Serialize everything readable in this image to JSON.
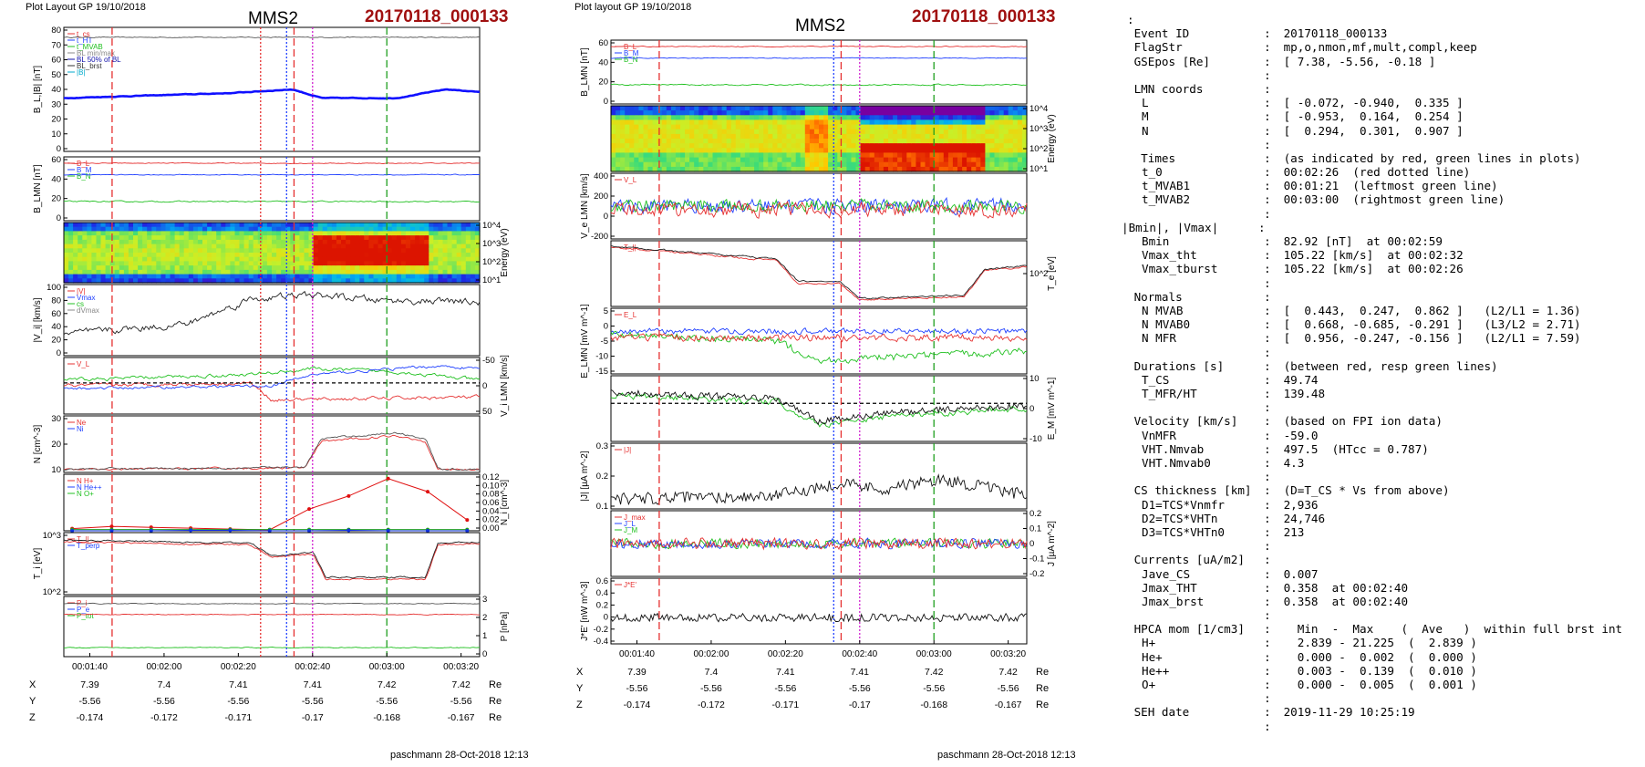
{
  "left_plot": {
    "layout_label": "Plot Layout GP 19/10/2018",
    "title": "MMS2",
    "event": "20170118_000133",
    "footer": "paschmann 28-Oct-2018 12:13",
    "time_ticks": [
      "00:01:40",
      "00:02:00",
      "00:02:20",
      "00:02:40",
      "00:03:00",
      "00:03:20"
    ],
    "coords": {
      "X": {
        "label": "X",
        "values": [
          "7.39",
          "7.4",
          "7.41",
          "7.41",
          "7.42",
          "7.42"
        ],
        "unit": "Re"
      },
      "Y": {
        "label": "Y",
        "values": [
          "-5.56",
          "-5.56",
          "-5.56",
          "-5.56",
          "-5.56",
          "-5.56"
        ],
        "unit": "Re"
      },
      "Z": {
        "label": "Z",
        "values": [
          "-0.174",
          "-0.172",
          "-0.171",
          "-0.17",
          "-0.168",
          "-0.167"
        ],
        "unit": "Re"
      }
    },
    "panels": [
      {
        "id": "bl",
        "ylabel": "B_L,|B| [nT]",
        "ticks": [
          "0",
          "10",
          "20",
          "30",
          "40",
          "50",
          "60",
          "70",
          "80"
        ],
        "legend": [
          "t_cs",
          "t_HT",
          "t_MVAB",
          "BL min/max",
          "BL 50% of BL",
          "BL_brst",
          "|B|"
        ]
      },
      {
        "id": "blmn",
        "ylabel": "B_LMN [nT]",
        "ticks": [
          "0",
          "20",
          "40",
          "60"
        ],
        "legend": [
          "B_L",
          "B_M",
          "B_N"
        ]
      },
      {
        "id": "espec",
        "ylabel": "Energy (eV)",
        "ticks": [
          "10^1",
          "10^2",
          "10^3",
          "10^4"
        ]
      },
      {
        "id": "vi",
        "ylabel": "|V_i| [km/s]",
        "ticks": [
          "0",
          "20",
          "40",
          "60",
          "80",
          "100"
        ],
        "legend": [
          "|V|",
          "Vmax",
          "cs",
          "dVmax"
        ]
      },
      {
        "id": "vilmn",
        "ylabel": "V_i LMN [km/s]",
        "ticks": [
          "50",
          "0",
          "-50"
        ],
        "legend": [
          "V_L"
        ]
      },
      {
        "id": "n",
        "ylabel": "N [cm^-3]",
        "ticks": [
          "10",
          "20",
          "30"
        ],
        "legend": [
          "Ne",
          "Ni"
        ]
      },
      {
        "id": "hpca",
        "ylabel": "N_i [cm^-3]",
        "ticks": [
          "0.00",
          "0.02",
          "0.04",
          "0.06",
          "0.08",
          "0.10",
          "0.12"
        ],
        "legend": [
          "N H+",
          "N He++",
          "N O+"
        ]
      },
      {
        "id": "ti",
        "ylabel": "T_i [eV]",
        "ticks": [
          "10^2",
          "10^3"
        ],
        "legend": [
          "T_||",
          "T_perp"
        ]
      },
      {
        "id": "p",
        "ylabel": "P [nPa]",
        "ticks": [
          "0",
          "1",
          "2",
          "3"
        ],
        "legend": [
          "P_i",
          "P_e",
          "P_tot"
        ]
      }
    ]
  },
  "right_plot": {
    "layout_label": "Plot layout GP 19/10/2018",
    "title": "MMS2",
    "event": "20170118_000133",
    "footer": "paschmann 28-Oct-2018 12:13",
    "time_ticks": [
      "00:01:40",
      "00:02:00",
      "00:02:20",
      "00:02:40",
      "00:03:00",
      "00:03:20"
    ],
    "coords": {
      "X": {
        "label": "X",
        "values": [
          "7.39",
          "7.4",
          "7.41",
          "7.41",
          "7.42",
          "7.42"
        ],
        "unit": "Re"
      },
      "Y": {
        "label": "Y",
        "values": [
          "-5.56",
          "-5.56",
          "-5.56",
          "-5.56",
          "-5.56",
          "-5.56"
        ],
        "unit": "Re"
      },
      "Z": {
        "label": "Z",
        "values": [
          "-0.174",
          "-0.172",
          "-0.171",
          "-0.17",
          "-0.168",
          "-0.167"
        ],
        "unit": "Re"
      }
    },
    "panels": [
      {
        "id": "blmn",
        "ylabel": "B_LMN [nT]",
        "ticks": [
          "0",
          "20",
          "40",
          "60"
        ],
        "legend": [
          "B_L",
          "B_M",
          "B_N"
        ]
      },
      {
        "id": "espec",
        "ylabel": "Energy (eV)",
        "ticks": [
          "10^1",
          "10^2",
          "10^3",
          "10^4"
        ]
      },
      {
        "id": "velmn",
        "ylabel": "V_e LMN [km/s]",
        "ticks": [
          "-200",
          "0",
          "200",
          "400"
        ],
        "legend": [
          "V_L"
        ]
      },
      {
        "id": "te",
        "ylabel": "T_e [eV]",
        "ticks": [
          "10^2"
        ],
        "legend": [
          "T_||"
        ]
      },
      {
        "id": "elmn",
        "ylabel": "E_LMN [mV m^-1]",
        "ticks": [
          "-15",
          "-10",
          "-5",
          "0",
          "5"
        ],
        "legend": [
          "E_L"
        ]
      },
      {
        "id": "em",
        "ylabel": "E_M [mV m^-1]",
        "ticks": [
          "-10",
          "0",
          "10"
        ]
      },
      {
        "id": "j",
        "ylabel": "|J| [µA m^-2]",
        "ticks": [
          "0.1",
          "0.2",
          "0.3"
        ],
        "legend": [
          "|J|"
        ]
      },
      {
        "id": "jlmn",
        "ylabel": "J [µA m^-2]",
        "ticks": [
          "-0.2",
          "-0.1",
          "0",
          "0.1",
          "0.2"
        ],
        "legend": [
          "J_max",
          "J_L",
          "J_M"
        ]
      },
      {
        "id": "je",
        "ylabel": "J*E' [nW m^-3]",
        "ticks": [
          "-0.4",
          "-0.2",
          "0",
          "0.2",
          "0.4",
          "0.6"
        ],
        "legend": [
          "J*E'"
        ]
      }
    ]
  },
  "info": {
    "lead": ":",
    "rows": [
      {
        "k": "Event ID",
        "v": "20170118_000133"
      },
      {
        "k": "FlagStr",
        "v": "mp,o,nmon,mf,mult,compl,keep"
      },
      {
        "k": "GSEpos [Re]",
        "v": "[ 7.38, -5.56, -0.18 ]"
      },
      {
        "k": "",
        "v": ""
      },
      {
        "k": "LMN coords",
        "v": ""
      },
      {
        "k2": "L",
        "v": "[ -0.072, -0.940,  0.335 ]"
      },
      {
        "k2": "M",
        "v": "[ -0.953,  0.164,  0.254 ]"
      },
      {
        "k2": "N",
        "v": "[  0.294,  0.301,  0.907 ]"
      },
      {
        "k": "",
        "v": ""
      },
      {
        "k": " Times",
        "v": "(as indicated by red, green lines in plots)"
      },
      {
        "k2": "t_0",
        "v": "00:02:26  (red dotted line)"
      },
      {
        "k2": "t_MVAB1",
        "v": "00:01:21  (leftmost green line)"
      },
      {
        "k2": "t_MVAB2",
        "v": "00:03:00  (rightmost green line)"
      },
      {
        "k": "",
        "v": ""
      },
      {
        "kr": "|Bmin|, |Vmax|",
        "v": ""
      },
      {
        "k2": "Bmin",
        "v": "82.92 [nT]  at 00:02:59"
      },
      {
        "k2": "Vmax_tht",
        "v": "105.22 [km/s]  at 00:02:32"
      },
      {
        "k2": "Vmax_tburst",
        "v": "105.22 [km/s]  at 00:02:26"
      },
      {
        "k": "",
        "v": ""
      },
      {
        "k": "Normals",
        "v": ""
      },
      {
        "k2": "N MVAB",
        "v": "[  0.443,  0.247,  0.862 ]   (L2/L1 = 1.36)"
      },
      {
        "k2": "N MVAB0",
        "v": "[  0.668, -0.685, -0.291 ]   (L3/L2 = 2.71)"
      },
      {
        "k2": "N MFR",
        "v": "[  0.956, -0.247, -0.156 ]   (L2/L1 = 7.59)"
      },
      {
        "k": "",
        "v": ""
      },
      {
        "k": "Durations [s]",
        "v": "(between red, resp green lines)"
      },
      {
        "k2": "T_CS",
        "v": "49.74"
      },
      {
        "k2": "T_MFR/HT",
        "v": "139.48"
      },
      {
        "k": "",
        "v": ""
      },
      {
        "k": "Velocity [km/s]",
        "v": "(based on FPI ion data)"
      },
      {
        "k2": "VnMFR",
        "v": "-59.0"
      },
      {
        "k2": "VHT.Nmvab",
        "v": "497.5  (HTcc = 0.787)"
      },
      {
        "k2": "VHT.Nmvab0",
        "v": "4.3"
      },
      {
        "k": "",
        "v": ""
      },
      {
        "k": "CS thickness [km]",
        "v": "(D=T_CS * Vs from above)"
      },
      {
        "k2": "D1=TCS*Vnmfr",
        "v": "2,936"
      },
      {
        "k2": "D2=TCS*VHTn",
        "v": "24,746"
      },
      {
        "k2": "D3=TCS*VHTn0",
        "v": "213"
      },
      {
        "k": "",
        "v": ""
      },
      {
        "k": "Currents [uA/m2]",
        "v": ""
      },
      {
        "k2": "Jave_CS",
        "v": "0.007"
      },
      {
        "k2": "Jmax_THT",
        "v": "0.358  at 00:02:40"
      },
      {
        "k2": "Jmax_brst",
        "v": "0.358  at 00:02:40"
      },
      {
        "k": "",
        "v": ""
      },
      {
        "k": "HPCA mom [1/cm3]",
        "v": "  Min  -  Max    (  Ave   )  within full brst int"
      },
      {
        "k2": "H+",
        "v": "  2.839 - 21.225  (  2.839 )"
      },
      {
        "k2": "He+",
        "v": "  0.000 -  0.002  (  0.000 )"
      },
      {
        "k2": "He++",
        "v": "  0.003 -  0.139  (  0.010 )"
      },
      {
        "k2": "O+",
        "v": "  0.000 -  0.005  (  0.001 )"
      },
      {
        "k": "",
        "v": ""
      },
      {
        "k": "SEH date",
        "v": "2019-11-29 10:25:19"
      },
      {
        "k": "",
        "v": ""
      }
    ]
  },
  "chart_data": [
    {
      "type": "line",
      "title": "MMS2",
      "subtitle": "20170118_000133",
      "x_ticks": [
        "00:01:40",
        "00:02:00",
        "00:02:20",
        "00:02:40",
        "00:03:00",
        "00:03:20"
      ],
      "x_range": [
        "00:01:33",
        "00:03:25"
      ],
      "panel_count": 9,
      "vertical_markers": [
        {
          "color": "#e53030",
          "style": "dashed",
          "time": "00:01:46"
        },
        {
          "color": "#e53030",
          "style": "dotted",
          "time": "00:02:26"
        },
        {
          "color": "#2040ff",
          "style": "dotted",
          "time": "00:02:33"
        },
        {
          "color": "#e53030",
          "style": "dashed",
          "time": "00:02:35"
        },
        {
          "color": "#d020d0",
          "style": "dotted",
          "time": "00:02:40"
        },
        {
          "color": "#20a020",
          "style": "dashed",
          "time": "00:03:00"
        }
      ],
      "hpca_points": {
        "x_sec": [
          0,
          14,
          28,
          42,
          56,
          70,
          84,
          98,
          112,
          126,
          140
        ],
        "H_plus": [
          0.005,
          0.01,
          0.008,
          0.006,
          0.004,
          0.002,
          0.05,
          0.08,
          0.12,
          0.09,
          0.025
        ],
        "He_plus_plus": [
          0.003,
          0.003,
          0.003,
          0.003,
          0.003,
          0.003,
          0.003,
          0.003,
          0.003,
          0.003,
          0.003
        ],
        "O_plus": [
          0.0,
          0.0,
          0.0,
          0.001,
          0.001,
          0.0,
          0.0,
          0.001,
          0.0,
          0.0,
          0.0
        ]
      }
    },
    {
      "type": "line",
      "title": "MMS2",
      "subtitle": "20170118_000133",
      "x_ticks": [
        "00:01:40",
        "00:02:00",
        "00:02:20",
        "00:02:40",
        "00:03:00",
        "00:03:20"
      ],
      "x_range": [
        "00:01:33",
        "00:03:25"
      ],
      "panel_count": 9,
      "vertical_markers": [
        {
          "color": "#e53030",
          "style": "dashed",
          "time": "00:01:46"
        },
        {
          "color": "#2040ff",
          "style": "dotted",
          "time": "00:02:33"
        },
        {
          "color": "#e53030",
          "style": "dashed",
          "time": "00:02:35"
        },
        {
          "color": "#d020d0",
          "style": "dotted",
          "time": "00:02:40"
        },
        {
          "color": "#20a020",
          "style": "dashed",
          "time": "00:03:00"
        }
      ]
    }
  ]
}
